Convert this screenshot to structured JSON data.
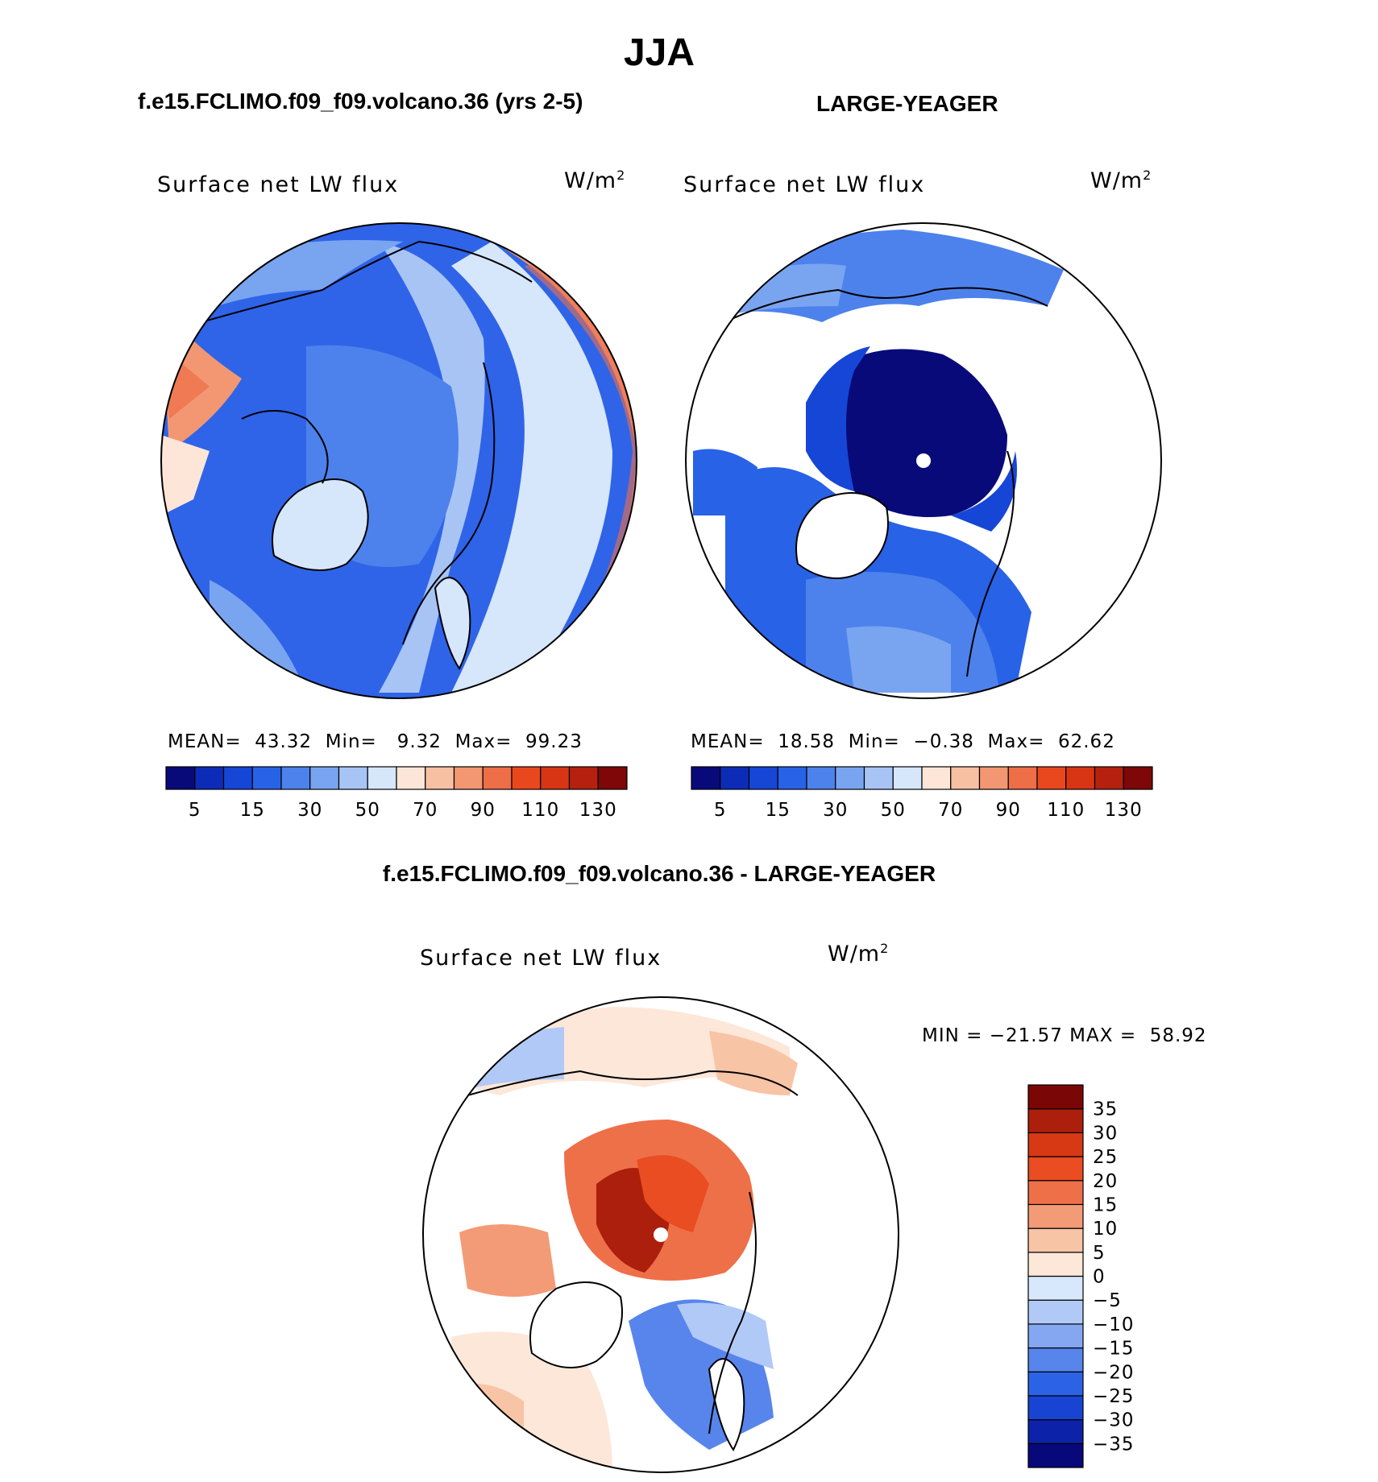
{
  "title": "JJA",
  "left_header": "f.e15.FCLIMO.f09_f09.volcano.36 (yrs 2-5)",
  "right_header": "LARGE-YEAGER",
  "diff_header": "f.e15.FCLIMO.f09_f09.volcano.36 - LARGE-YEAGER",
  "colors": {
    "abs_scale": [
      "#080a7a",
      "#0c2cb8",
      "#1646d6",
      "#2862e6",
      "#4d82ec",
      "#79a4f0",
      "#a7c4f5",
      "#d6e6fb",
      "#fde6d8",
      "#f7c0a2",
      "#f29771",
      "#ee6e47",
      "#e9481f",
      "#d83515",
      "#b5210e",
      "#7e0707"
    ],
    "diff_scale_bottom_to_top": [
      "#07087a",
      "#0c22a8",
      "#1844d4",
      "#2c62e6",
      "#5885ec",
      "#85a7f1",
      "#b1c9f6",
      "#d7e7fc",
      "#fde7d9",
      "#f8c4a6",
      "#f39b76",
      "#ee7049",
      "#e94d21",
      "#d63914",
      "#ac1f0c",
      "#7a0606"
    ]
  },
  "panels": [
    {
      "id": "model",
      "label": "Surface net LW flux",
      "units": "W/m",
      "units_sup": "2",
      "stats": {
        "mean_label": "MEAN=",
        "mean": "43.32",
        "min_label": "Min=",
        "min": "9.32",
        "max_label": "Max=",
        "max": "99.23"
      }
    },
    {
      "id": "obs",
      "label": "Surface net LW flux",
      "units": "W/m",
      "units_sup": "2",
      "stats": {
        "mean_label": "MEAN=",
        "mean": "18.58",
        "min_label": "Min=",
        "min": "−0.38",
        "max_label": "Max=",
        "max": "62.62"
      }
    },
    {
      "id": "diff",
      "label": "Surface net LW flux",
      "units": "W/m",
      "units_sup": "2",
      "stats": {
        "min_label": "MIN =",
        "min": "−21.57",
        "max_label": "MAX =",
        "max": "58.92"
      }
    }
  ],
  "chart_data": [
    {
      "type": "heatmap",
      "projection": "north-polar-stereographic",
      "title": "Surface net LW flux",
      "units": "W/m2",
      "colorbar_ticks": [
        "5",
        "15",
        "30",
        "50",
        "70",
        "90",
        "110",
        "130"
      ],
      "levels": [
        5,
        10,
        15,
        20,
        30,
        40,
        50,
        60,
        70,
        80,
        90,
        100,
        110,
        120,
        130
      ],
      "summary": {
        "mean": 43.32,
        "min": 9.32,
        "max": 99.23
      }
    },
    {
      "type": "heatmap",
      "projection": "north-polar-stereographic",
      "title": "Surface net LW flux",
      "units": "W/m2",
      "colorbar_ticks": [
        "5",
        "15",
        "30",
        "50",
        "70",
        "90",
        "110",
        "130"
      ],
      "levels": [
        5,
        10,
        15,
        20,
        30,
        40,
        50,
        60,
        70,
        80,
        90,
        100,
        110,
        120,
        130
      ],
      "summary": {
        "mean": 18.58,
        "min": -0.38,
        "max": 62.62
      }
    },
    {
      "type": "heatmap",
      "projection": "north-polar-stereographic",
      "title": "Surface net LW flux",
      "units": "W/m2",
      "colorbar_ticks": [
        "35",
        "30",
        "25",
        "20",
        "15",
        "10",
        "5",
        "0",
        "−5",
        "−10",
        "−15",
        "−20",
        "−25",
        "−30",
        "−35"
      ],
      "levels": [
        -35,
        -30,
        -25,
        -20,
        -15,
        -10,
        -5,
        0,
        5,
        10,
        15,
        20,
        25,
        30,
        35
      ],
      "summary": {
        "min": -21.57,
        "max": 58.92
      }
    }
  ]
}
